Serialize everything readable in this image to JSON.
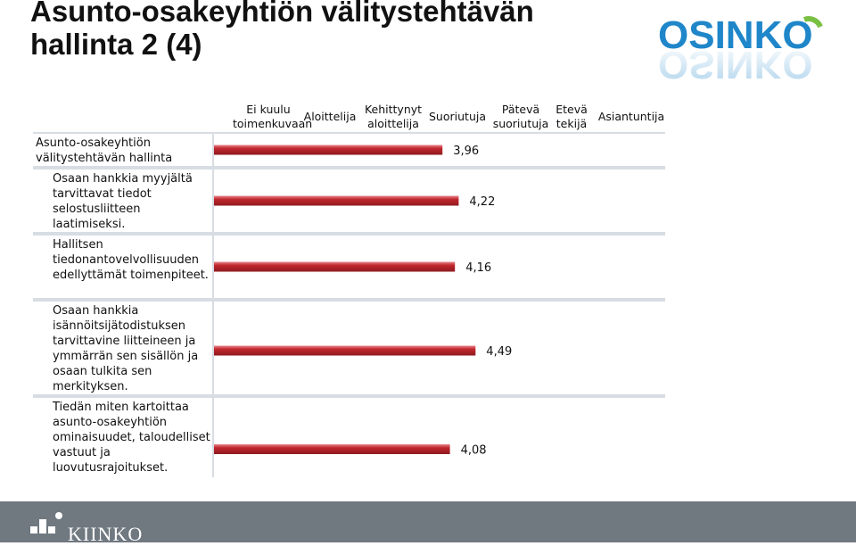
{
  "slide": {
    "title_line1": "Asunto-osakeyhtiön välitystehtävän",
    "title_line2": "hallinta 2 (4)"
  },
  "brand": {
    "logo_text": "OSINKO",
    "logo_color": "#1f86c9",
    "logo_accent": "#7ac043",
    "footer_text": "KIINKO",
    "footer_color": "#707880"
  },
  "chart_data": {
    "type": "bar",
    "orientation": "horizontal",
    "levels": [
      "Ei kuulu\ntoimenkuvaan",
      "Aloittelija",
      "Kehittynyt\naloittelija",
      "Suoriutuja",
      "Pätevä\nsuoriutuja",
      "Etevä\ntekijä",
      "Asiantuntija"
    ],
    "categories": [
      "Asunto-osakeyhtiön välitystehtävän hallinta",
      "Osaan hankkia myyjältä tarvittavat tiedot selostusliitteen laatimiseksi.",
      "Hallitsen tiedonantovelvollisuuden edellyttämät toimenpiteet.",
      "Osaan hankkia isännöitsijätodistuksen tarvittavine liitteineen ja ymmärrän sen sisällön ja osaan tulkita sen merkityksen.",
      "Tiedän miten kartoittaa asunto-osakeyhtiön ominaisuudet, taloudelliset vastuut ja luovutusrajoitukset."
    ],
    "values": [
      3.96,
      4.22,
      4.16,
      4.49,
      4.08
    ],
    "value_labels": [
      "3,96",
      "4,22",
      "4,16",
      "4,49",
      "4,08"
    ],
    "xlim": [
      0,
      6
    ],
    "bar_color": "#c0272d",
    "grid": true
  }
}
